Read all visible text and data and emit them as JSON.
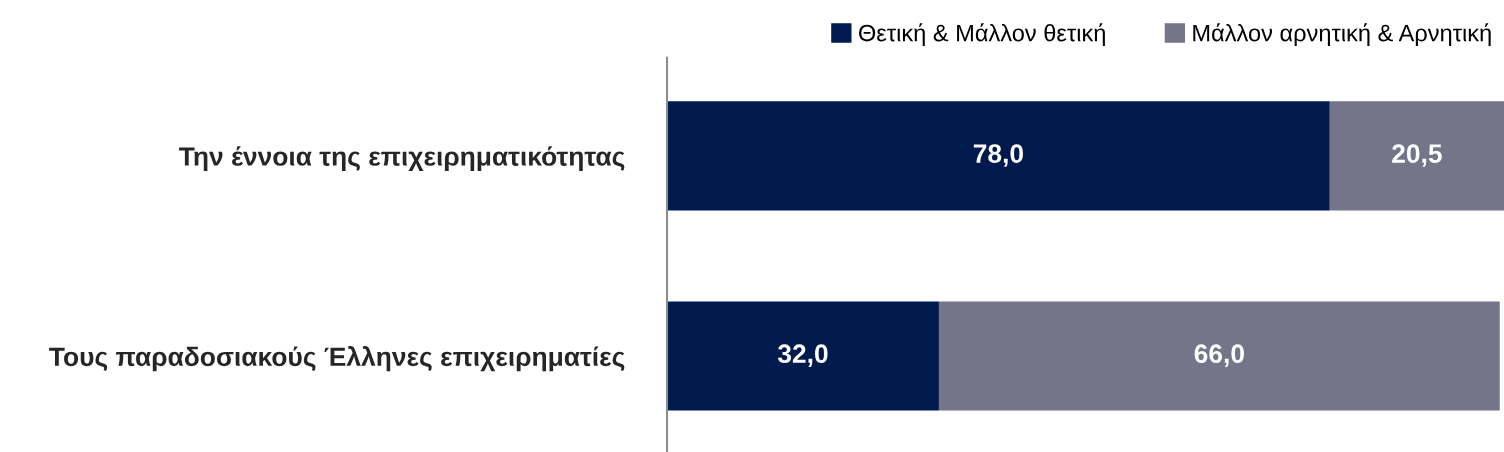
{
  "chart_data": {
    "type": "bar",
    "orientation": "horizontal",
    "stacked": true,
    "categories": [
      "Την έννοια της επιχειρηματικότητας",
      "Τους παραδοσιακούς Έλληνες επιχειρηματίες"
    ],
    "series": [
      {
        "name": "Θετική & Μάλλον θετική",
        "color": "#001a4e",
        "values": [
          78.0,
          32.0
        ],
        "value_labels": [
          "78,0",
          "32,0"
        ]
      },
      {
        "name": "Μάλλον αρνητική & Αρνητική",
        "color": "#75758a",
        "values": [
          20.5,
          66.0
        ],
        "value_labels": [
          "20,5",
          "66,0"
        ]
      }
    ],
    "xlim": [
      0,
      98.5
    ],
    "tick_labels": "y",
    "legend": "top right",
    "grid": false
  }
}
